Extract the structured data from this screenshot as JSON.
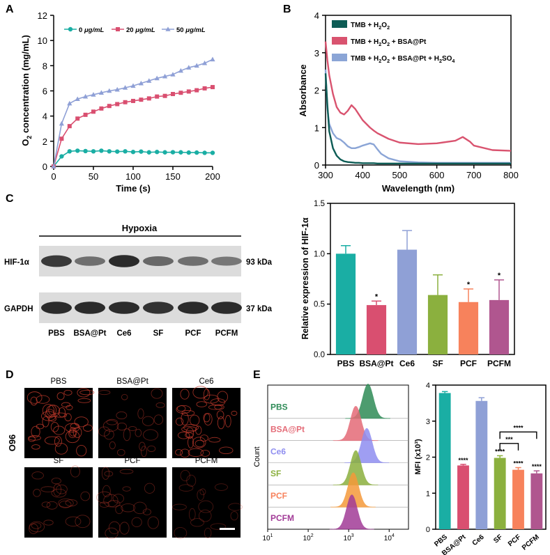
{
  "panels": {
    "A": {
      "letter": "A"
    },
    "B": {
      "letter": "B"
    },
    "C": {
      "letter": "C"
    },
    "D": {
      "letter": "D"
    },
    "E": {
      "letter": "E"
    }
  },
  "colors": {
    "teal": "#1aaea4",
    "pink": "#d94f70",
    "lavender": "#8fa0d6",
    "green": "#8bb03e",
    "orange": "#f7825c",
    "purple": "#b0568f",
    "darkgreen": "#2e8b57",
    "darkteal": "#0d5c55",
    "pinkB": "#d9536f",
    "blueB": "#8ba5d6"
  },
  "chart_data": [
    {
      "id": "A",
      "type": "line",
      "title": "",
      "xlabel": "Time (s)",
      "ylabel_main": "O",
      "ylabel_sub": "2",
      "ylabel_rest": " concentration (mg/mL)",
      "xlim": [
        0,
        200
      ],
      "ylim": [
        0,
        12
      ],
      "xticks": [
        0,
        50,
        100,
        150,
        200
      ],
      "yticks": [
        0,
        2,
        4,
        6,
        8,
        10,
        12
      ],
      "x": [
        0,
        10,
        20,
        30,
        40,
        50,
        60,
        70,
        80,
        90,
        100,
        110,
        120,
        130,
        140,
        150,
        160,
        170,
        180,
        190,
        200
      ],
      "series": [
        {
          "name": "0 μg/mL",
          "label_num": "0 ",
          "label_unit": "μg/mL",
          "marker": "circle",
          "color": "#1aaea4",
          "values": [
            0,
            0.8,
            1.2,
            1.25,
            1.22,
            1.2,
            1.25,
            1.2,
            1.18,
            1.2,
            1.15,
            1.18,
            1.12,
            1.15,
            1.12,
            1.13,
            1.12,
            1.1,
            1.1,
            1.08,
            1.08
          ]
        },
        {
          "name": "20 μg/mL",
          "label_num": "20 ",
          "label_unit": "μg/mL",
          "marker": "square",
          "color": "#d94f70",
          "values": [
            0,
            2.2,
            3.2,
            3.8,
            4.1,
            4.35,
            4.6,
            4.8,
            4.95,
            5.1,
            5.2,
            5.3,
            5.4,
            5.55,
            5.6,
            5.75,
            5.85,
            5.95,
            6.05,
            6.2,
            6.3
          ]
        },
        {
          "name": "50 μg/mL",
          "label_num": "50 ",
          "label_unit": "μg/mL",
          "marker": "triangle",
          "color": "#8fa0d6",
          "values": [
            0,
            3.4,
            5.0,
            5.35,
            5.55,
            5.7,
            5.85,
            6.0,
            6.1,
            6.25,
            6.4,
            6.6,
            6.8,
            7.0,
            7.15,
            7.3,
            7.6,
            7.85,
            8.0,
            8.2,
            8.5
          ]
        }
      ]
    },
    {
      "id": "B",
      "type": "line",
      "xlabel": "Wavelength (nm)",
      "ylabel": "Absorbance",
      "xlim": [
        300,
        800
      ],
      "ylim": [
        0,
        4
      ],
      "xticks": [
        300,
        400,
        500,
        600,
        700,
        800
      ],
      "yticks": [
        0,
        1,
        2,
        3,
        4
      ],
      "x": [
        300,
        305,
        310,
        320,
        330,
        340,
        350,
        360,
        370,
        380,
        390,
        400,
        410,
        420,
        430,
        440,
        450,
        470,
        500,
        550,
        600,
        650,
        670,
        690,
        700,
        750,
        800
      ],
      "series": [
        {
          "name": "TMB + H2O2",
          "color": "#0d5c55",
          "label_parts": [
            "TMB + H",
            "2",
            "O",
            "2"
          ],
          "values": [
            2.45,
            1.6,
            0.9,
            0.45,
            0.25,
            0.15,
            0.1,
            0.08,
            0.07,
            0.06,
            0.06,
            0.05,
            0.05,
            0.05,
            0.05,
            0.04,
            0.04,
            0.04,
            0.04,
            0.04,
            0.04,
            0.04,
            0.04,
            0.04,
            0.04,
            0.04,
            0.04
          ]
        },
        {
          "name": "TMB + H2O2 + BSA@Pt",
          "color": "#d9536f",
          "label_parts": [
            "TMB + H",
            "2",
            "O",
            "2",
            " + BSA@Pt"
          ],
          "values": [
            3.3,
            2.8,
            2.4,
            1.9,
            1.55,
            1.4,
            1.35,
            1.45,
            1.6,
            1.5,
            1.35,
            1.2,
            1.1,
            1.0,
            0.92,
            0.85,
            0.8,
            0.7,
            0.6,
            0.56,
            0.58,
            0.65,
            0.75,
            0.62,
            0.52,
            0.4,
            0.38
          ]
        },
        {
          "name": "TMB + H2O2 + BSA@Pt + H2SO4",
          "color": "#8ba5d6",
          "label_parts": [
            "TMB + H",
            "2",
            "O",
            "2",
            " + BSA@Pt + H",
            "2",
            "SO",
            "4"
          ],
          "values": [
            2.55,
            1.5,
            1.1,
            0.85,
            0.72,
            0.68,
            0.6,
            0.5,
            0.45,
            0.45,
            0.48,
            0.52,
            0.55,
            0.58,
            0.55,
            0.42,
            0.3,
            0.18,
            0.1,
            0.07,
            0.06,
            0.06,
            0.06,
            0.06,
            0.06,
            0.06,
            0.06
          ]
        }
      ]
    },
    {
      "id": "C-bar",
      "type": "bar",
      "ylabel": "Relative expression of HIF-1α",
      "ylim": [
        0,
        1.5
      ],
      "yticks": [
        "0.0",
        "0.5",
        "1.0",
        "1.5"
      ],
      "categories": [
        "PBS",
        "BSA@Pt",
        "Ce6",
        "SF",
        "PCF",
        "PCFM"
      ],
      "values": [
        1.0,
        0.49,
        1.04,
        0.59,
        0.52,
        0.54
      ],
      "errors": [
        0.08,
        0.04,
        0.19,
        0.2,
        0.13,
        0.2
      ],
      "significance": [
        "",
        "*",
        "",
        "",
        "*",
        "*"
      ],
      "colors": [
        "#1aaea4",
        "#d94f70",
        "#8fa0d6",
        "#8bb03e",
        "#f7825c",
        "#b0568f"
      ]
    },
    {
      "id": "E-bar",
      "type": "bar",
      "ylabel": "MFI (x10³)",
      "ylim": [
        0,
        4
      ],
      "yticks": [
        "0",
        "1",
        "2",
        "3",
        "4"
      ],
      "categories": [
        "PBS",
        "BSA@Pt",
        "Ce6",
        "SF",
        "PCF",
        "PCFM"
      ],
      "values": [
        3.78,
        1.77,
        3.56,
        1.98,
        1.65,
        1.55
      ],
      "errors": [
        0.04,
        0.03,
        0.09,
        0.06,
        0.06,
        0.07
      ],
      "significance": [
        "",
        "****",
        "",
        "****",
        "****",
        "****"
      ],
      "brackets": [
        {
          "from": "SF",
          "to": "PCF",
          "label": "***"
        },
        {
          "from": "SF",
          "to": "PCFM",
          "label": "****"
        }
      ],
      "colors": [
        "#1aaea4",
        "#d94f70",
        "#8fa0d6",
        "#8bb03e",
        "#f7825c",
        "#b0568f"
      ]
    },
    {
      "id": "E-flow",
      "type": "area",
      "ylabel": "Count",
      "xscale": "log",
      "xlim": [
        10,
        30000
      ],
      "xtick_base": "10",
      "xtick_exps": [
        "1",
        "2",
        "3",
        "4"
      ],
      "series": [
        {
          "name": "PBS",
          "peak": 3000,
          "color": "#2e8b57"
        },
        {
          "name": "BSA@Pt",
          "peak": 1500,
          "color": "#e46b77"
        },
        {
          "name": "Ce6",
          "peak": 2800,
          "color": "#8f8ef0"
        },
        {
          "name": "SF",
          "peak": 1500,
          "color": "#8bb03e"
        },
        {
          "name": "PCF",
          "peak": 1300,
          "color": "#f59a3a"
        },
        {
          "name": "PCFM",
          "peak": 1200,
          "color": "#a23b97"
        }
      ],
      "label_colors": [
        "#2e8b57",
        "#e46b77",
        "#8f8ef0",
        "#8bb03e",
        "#f7825c",
        "#a23b97"
      ]
    }
  ],
  "blot": {
    "header": "Hypoxia",
    "rows": [
      {
        "label": "HIF-1α",
        "size": "93 kDa",
        "intensities": [
          0.85,
          0.45,
          0.95,
          0.5,
          0.45,
          0.38
        ]
      },
      {
        "label": "GAPDH",
        "size": "37 kDa",
        "intensities": [
          0.95,
          0.95,
          0.95,
          0.9,
          0.95,
          0.95
        ]
      }
    ],
    "lanes": [
      "PBS",
      "BSA@Pt",
      "Ce6",
      "SF",
      "PCF",
      "PCFM"
    ]
  },
  "micro": {
    "row_label": "O96",
    "titles": [
      "PBS",
      "BSA@Pt",
      "Ce6",
      "SF",
      "PCF",
      "PCFM"
    ],
    "intensities": [
      0.85,
      0.35,
      0.8,
      0.3,
      0.28,
      0.18
    ]
  }
}
